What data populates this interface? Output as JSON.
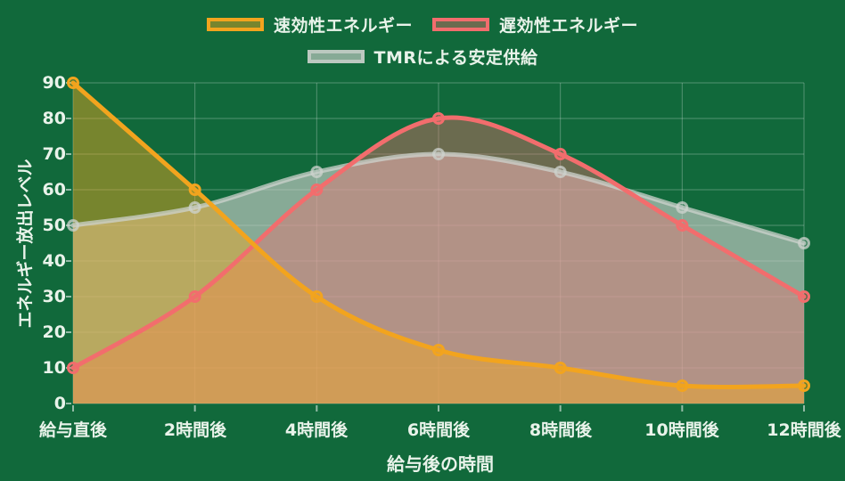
{
  "chart_data": {
    "type": "line",
    "subtype": "smooth curves with filled areas to zero",
    "categories": [
      "給与直後",
      "2時間後",
      "4時間後",
      "6時間後",
      "8時間後",
      "10時間後",
      "12時間後"
    ],
    "series": [
      {
        "name": "速効性エネルギー",
        "color": "#F2A41E",
        "fill": "rgba(245,168,30,0.45)",
        "values": [
          90,
          60,
          30,
          15,
          10,
          5,
          5
        ]
      },
      {
        "name": "遅効性エネルギー",
        "color": "#F26D6D",
        "fill": "rgba(242,109,109,0.4)",
        "values": [
          10,
          30,
          60,
          80,
          70,
          50,
          30
        ]
      },
      {
        "name": "TMRによる安定供給",
        "color": "rgba(205,211,205,0.75)",
        "fill": "rgba(200,206,200,0.65)",
        "values": [
          50,
          55,
          65,
          70,
          65,
          55,
          45
        ]
      }
    ],
    "xlabel": "給与後の時間",
    "ylabel": "エネルギー放出レベル",
    "ylim": [
      0,
      90
    ],
    "yticks": [
      "0",
      "10",
      "20",
      "30",
      "40",
      "50",
      "60",
      "70",
      "80",
      "90"
    ],
    "grid": true,
    "legend_position": "top",
    "background": "#11693B",
    "text_color": "#E9F3EA",
    "grid_color": "rgba(255,255,255,0.28)",
    "tick_color": "rgba(255,255,255,0.55)"
  }
}
